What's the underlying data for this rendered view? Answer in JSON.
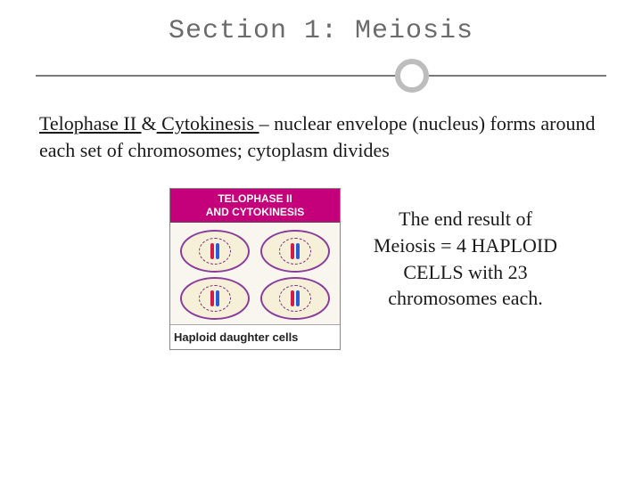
{
  "title": "Section 1: Meiosis",
  "body": {
    "term1": "Telophase II ",
    "amp": "&",
    "term2": " Cytokinesis ",
    "rest": "– nuclear envelope (nucleus) forms around each set of chromosomes; cytoplasm divides"
  },
  "figure": {
    "header_line1": "TELOPHASE II",
    "header_line2": "AND CYTOKINESIS",
    "caption": "Haploid daughter cells",
    "colors": {
      "header_bg": "#c4007a",
      "membrane": "#8a3d9c",
      "cytoplasm": "#f7f0d8",
      "chrom_red": "#d11c4a",
      "chrom_blue": "#2b5bd7"
    }
  },
  "result": "The end result of Meiosis = 4 HAPLOID CELLS with 23 chromosomes each."
}
